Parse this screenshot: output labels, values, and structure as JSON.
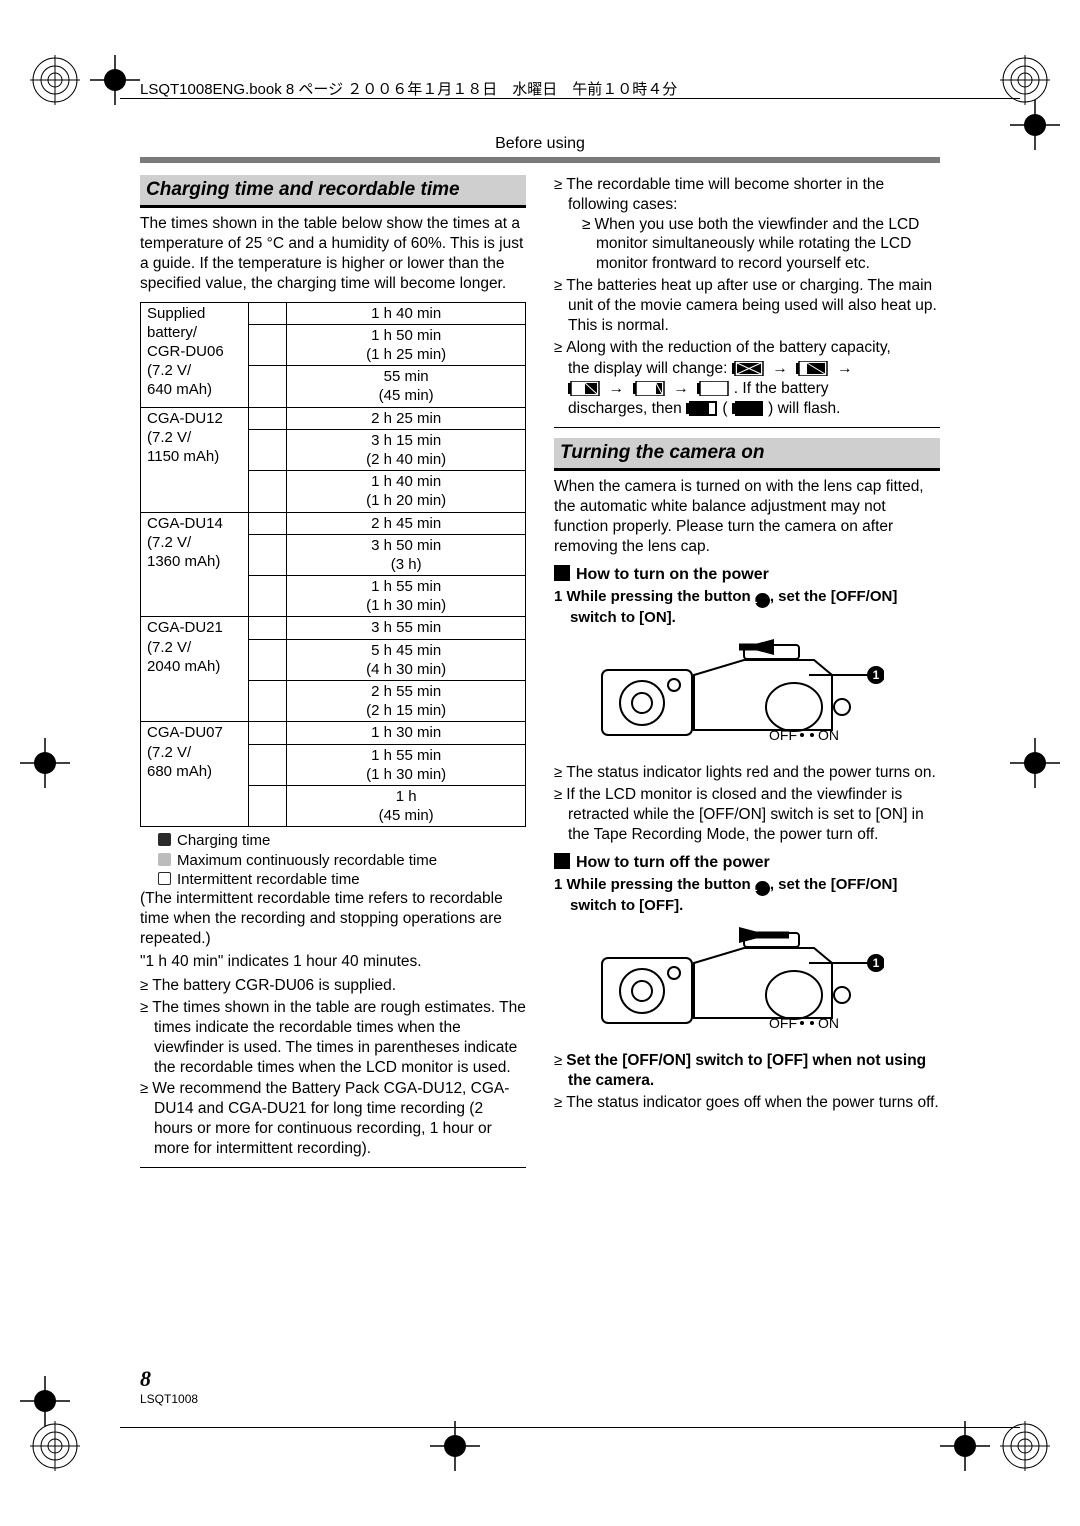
{
  "meta": {
    "header_line": "LSQT1008ENG.book  8 ページ  ２００６年１月１８日　水曜日　午前１０時４分",
    "section_label": "Before using",
    "page_number": "8",
    "doc_id": "LSQT1008"
  },
  "left": {
    "heading": "Charging time and recordable time",
    "intro": "The times shown in the table below show the times at a temperature of 25 °C and a humidity of 60%. This is just a guide. If the temperature is higher or lower than the specified value, the charging time will become longer.",
    "table": {
      "rows": [
        {
          "a": "Supplied\nbattery/\nCGR-DU06\n(7.2 V/\n640 mAh)",
          "c": [
            "1 h 40 min",
            "1 h 50 min\n(1 h 25 min)",
            "55 min\n(45 min)"
          ]
        },
        {
          "a": "CGA-DU12\n(7.2 V/\n1150 mAh)",
          "c": [
            "2 h 25 min",
            "3 h 15 min\n(2 h 40 min)",
            "1 h 40 min\n(1 h 20 min)"
          ]
        },
        {
          "a": "CGA-DU14\n(7.2 V/\n1360 mAh)",
          "c": [
            "2 h 45 min",
            "3 h 50 min\n(3 h)",
            "1 h 55 min\n(1 h 30 min)"
          ]
        },
        {
          "a": "CGA-DU21\n(7.2 V/\n2040 mAh)",
          "c": [
            "3 h 55 min",
            "5 h 45 min\n(4 h 30 min)",
            "2 h 55 min\n(2 h 15 min)"
          ]
        },
        {
          "a": "CGA-DU07\n(7.2 V/\n680 mAh)",
          "c": [
            "1 h 30 min",
            "1 h 55 min\n(1 h 30 min)",
            "1 h\n(45 min)"
          ]
        }
      ],
      "legend": [
        {
          "style": "dark",
          "label": "Charging time"
        },
        {
          "style": "light",
          "label": "Maximum continuously recordable time"
        },
        {
          "style": "outline",
          "label": "Intermittent recordable time"
        }
      ]
    },
    "after_table": "(The intermittent recordable time refers to recordable time when the recording and stopping operations are repeated.)",
    "note_hours": "\"1 h 40 min\" indicates 1 hour 40 minutes.",
    "bullets": [
      "The battery CGR-DU06 is supplied.",
      "The times shown in the table are rough estimates. The times indicate the recordable times when the viewfinder is used. The times in parentheses indicate the recordable times when the LCD monitor is used.",
      "We recommend the Battery Pack CGA-DU12, CGA-DU14 and CGA-DU21 for long time recording (2 hours or more for continuous recording, 1 hour or more for intermittent recording)."
    ]
  },
  "right": {
    "bullets_top": [
      {
        "text": "The recordable time will become shorter in the following cases:",
        "sub": [
          "When you use both the viewfinder and the LCD monitor simultaneously while rotating the LCD monitor frontward to record yourself etc."
        ]
      },
      {
        "text": "The batteries heat up after use or charging. The main unit of the movie camera being used will also heat up. This is normal."
      },
      {
        "text": "Along with the reduction of the battery capacity, the display will change:"
      }
    ],
    "battery_tail_1": ". If the battery",
    "battery_tail_2a": "discharges, then ",
    "battery_tail_2b": " ( ",
    "battery_tail_2c": " ) will flash.",
    "heading2": "Turning the camera on",
    "intro2": "When the camera is turned on with the lens cap fitted, the automatic white balance adjustment may not function properly. Please turn the camera on after removing the lens cap.",
    "sub1": "How to turn on the power",
    "step1": "1  While pressing the button ①, set the [OFF/ON] switch to [ON].",
    "after_diagram1": [
      "The status indicator lights red and the power turns on.",
      "If the LCD monitor is closed and the viewfinder is retracted while the [OFF/ON] switch is set to [ON] in the Tape Recording Mode, the power turn off."
    ],
    "sub2": "How to turn off the power",
    "step2": "1  While pressing the button ①, set the [OFF/ON] switch to [OFF].",
    "after_diagram2_bold": "Set the [OFF/ON] switch to [OFF] when not using the camera.",
    "after_diagram2": "The status indicator goes off when the power turns off.",
    "switch_label_off": "OFF",
    "switch_label_on": "ON"
  },
  "style": {
    "page_bg": "#ffffff",
    "heading_bar_bg": "#cfcfcf",
    "thick_rule": "#7a7a7a",
    "text_color": "#000000"
  }
}
